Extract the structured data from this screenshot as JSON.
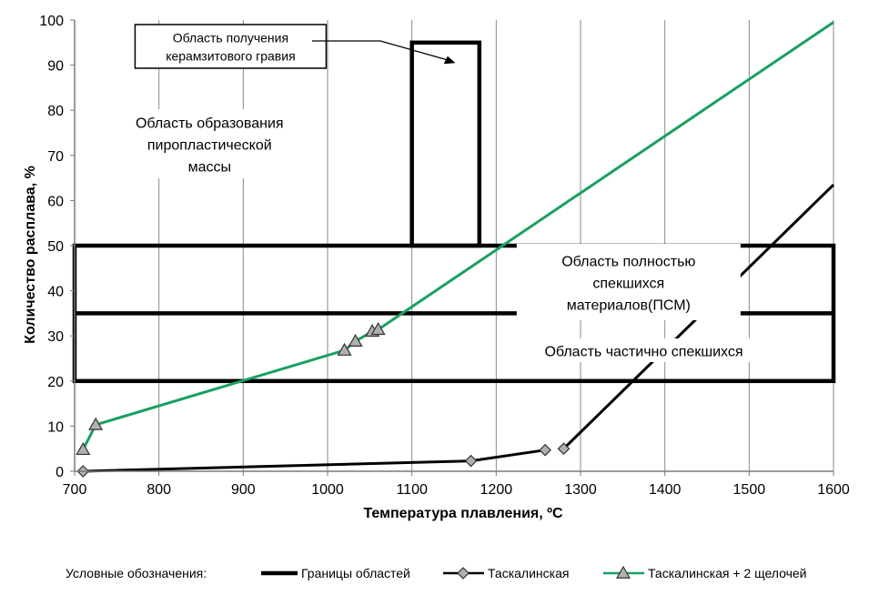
{
  "chart_data": {
    "type": "line",
    "xlabel": "Температура плавления, ºС",
    "ylabel": "Количество  расплава, %",
    "xlim": [
      700,
      1600
    ],
    "ylim": [
      0,
      100
    ],
    "x_ticks": [
      700,
      800,
      900,
      1000,
      1100,
      1200,
      1300,
      1400,
      1500,
      1600
    ],
    "y_ticks": [
      0,
      10,
      20,
      30,
      40,
      50,
      60,
      70,
      80,
      90,
      100
    ],
    "grid": "vertical",
    "series": [
      {
        "name": "Таскалинская",
        "color": "#000000",
        "marker": "diamond",
        "segments": [
          {
            "x": [
              710,
              1170,
              1258
            ],
            "y": [
              0,
              2.3,
              4.7
            ]
          },
          {
            "x": [
              1280,
              1600
            ],
            "y": [
              5,
              63.5
            ]
          }
        ]
      },
      {
        "name": "Таскалинская + 2 щелочей",
        "color": "#1aa060",
        "marker": "triangle",
        "segments": [
          {
            "x": [
              710,
              725
            ],
            "y": [
              4.8,
              10.3
            ]
          },
          {
            "x": [
              725,
              1020,
              1033,
              1053,
              1060,
              1600
            ],
            "y": [
              10.3,
              26.8,
              28.8,
              31,
              31.4,
              99.5
            ]
          }
        ]
      }
    ],
    "region_boundaries": {
      "name": "Границы областей",
      "color": "#000000",
      "rects": [
        {
          "x": [
            700,
            1600
          ],
          "y": [
            20,
            50
          ]
        },
        {
          "x": [
            1100,
            1180
          ],
          "y": [
            50,
            95
          ]
        }
      ],
      "lines": [
        {
          "x": [
            700,
            1600
          ],
          "y": [
            35,
            35
          ]
        }
      ]
    },
    "annotations": [
      {
        "id": "ceramsite",
        "lines": [
          "Область получения",
          "керамзитового гравия"
        ]
      },
      {
        "id": "pyroplastic",
        "lines": [
          "Область образования",
          "пиропластической",
          "массы"
        ]
      },
      {
        "id": "full-sinter",
        "lines": [
          "Область полностью",
          "спекшихся",
          "материалов(ПСМ)"
        ]
      },
      {
        "id": "partial-sinter",
        "lines": [
          "Область частично спекшихся"
        ]
      }
    ],
    "legend": {
      "position": "bottom",
      "title": "Условные обозначения:",
      "entries": [
        "Границы областей",
        "Таскалинская",
        "Таскалинская + 2 щелочей"
      ]
    }
  }
}
